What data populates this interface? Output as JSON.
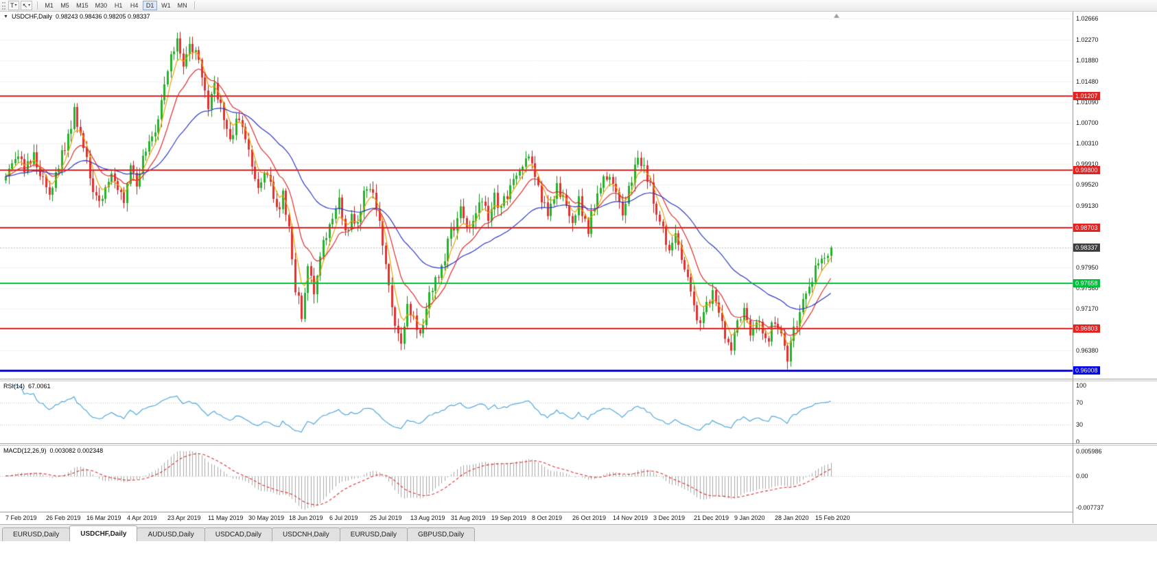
{
  "icons": {
    "caret": "▾",
    "collapse": "▼",
    "arrows_tool": "↖"
  },
  "toolbar": {
    "text_tool_label": "T",
    "timeframes": [
      "M1",
      "M5",
      "M15",
      "M30",
      "H1",
      "H4",
      "D1",
      "W1",
      "MN"
    ],
    "active_timeframe": "D1"
  },
  "chart": {
    "symbol_title": "USDCHF,Daily",
    "ohlc_text": "0.98243 0.98436 0.98205 0.98337"
  },
  "rsi": {
    "label": "RSI(14)",
    "value": "67.0061"
  },
  "macd": {
    "label": "MACD(12,26,9)",
    "value": "0.003082 0.002348"
  },
  "tabs": {
    "items": [
      "EURUSD,Daily",
      "USDCHF,Daily",
      "AUDUSD,Daily",
      "USDCAD,Daily",
      "USDCNH,Daily",
      "EURUSD,Daily",
      "GBPUSD,Daily"
    ],
    "active_index": 1
  },
  "chart_data": {
    "type": "candlestick",
    "symbol": "USDCHF",
    "timeframe": "Daily",
    "ohlc_display": {
      "open": 0.98243,
      "high": 0.98436,
      "low": 0.98205,
      "close": 0.98337
    },
    "current_price": 0.98337,
    "current_price_label": "0.98337",
    "current_price_tag_color": "#3f3f3f",
    "price_axis": {
      "min": 0.9585,
      "max": 1.028,
      "tick_labels": [
        1.02666,
        1.0227,
        1.0188,
        1.0148,
        1.0109,
        1.007,
        1.0031,
        0.9991,
        0.9952,
        0.9913,
        0.9873,
        0.9795,
        0.9756,
        0.9717,
        0.9678,
        0.9638
      ]
    },
    "hlines": [
      {
        "label": "1.01207",
        "price": 1.01207,
        "color": "#e42222",
        "width": 2
      },
      {
        "label": "0.99800",
        "price": 0.998,
        "color": "#e42222",
        "width": 2
      },
      {
        "label": "0.98703",
        "price": 0.98703,
        "color": "#e42222",
        "width": 2
      },
      {
        "label": "0.97658",
        "price": 0.97658,
        "color": "#00bd39",
        "width": 2
      },
      {
        "label": "0.96803",
        "price": 0.96803,
        "color": "#e42222",
        "width": 2
      },
      {
        "label": "0.96008",
        "price": 0.96008,
        "color": "#0000f0",
        "width": 3
      }
    ],
    "x_labels": [
      "7 Feb 2019",
      "26 Feb 2019",
      "16 Mar 2019",
      "4 Apr 2019",
      "23 Apr 2019",
      "11 May 2019",
      "30 May 2019",
      "18 Jun 2019",
      "6 Jul 2019",
      "25 Jul 2019",
      "13 Aug 2019",
      "31 Aug 2019",
      "19 Sep 2019",
      "8 Oct 2019",
      "26 Oct 2019",
      "14 Nov 2019",
      "3 Dec 2019",
      "21 Dec 2019",
      "9 Jan 2020",
      "28 Jan 2020",
      "15 Feb 2020"
    ],
    "bars": 266,
    "bars_per_label": 13,
    "candle_colors": {
      "up": "#23b22a",
      "up_border": "#128a19",
      "down": "#e03030",
      "down_border": "#b21e1e"
    },
    "price_path_anchors": [
      [
        0,
        0.996
      ],
      [
        3,
        1.0005
      ],
      [
        6,
        0.9985
      ],
      [
        9,
        1.001
      ],
      [
        12,
        0.9965
      ],
      [
        14,
        0.9935
      ],
      [
        17,
        0.999
      ],
      [
        20,
        1.004
      ],
      [
        22,
        1.009
      ],
      [
        24,
        1.005
      ],
      [
        26,
        0.9995
      ],
      [
        28,
        0.994
      ],
      [
        31,
        0.9915
      ],
      [
        34,
        0.9985
      ],
      [
        36,
        0.995
      ],
      [
        38,
        0.993
      ],
      [
        40,
        0.999
      ],
      [
        42,
        0.996
      ],
      [
        44,
        1.0
      ],
      [
        47,
        1.0035
      ],
      [
        49,
        1.008
      ],
      [
        51,
        1.014
      ],
      [
        53,
        1.02
      ],
      [
        55,
        1.022
      ],
      [
        57,
        1.0185
      ],
      [
        59,
        1.0215
      ],
      [
        61,
        1.0205
      ],
      [
        63,
        1.016
      ],
      [
        65,
        1.0105
      ],
      [
        67,
        1.0135
      ],
      [
        69,
        1.01
      ],
      [
        71,
        1.0055
      ],
      [
        73,
        1.0045
      ],
      [
        75,
        1.0085
      ],
      [
        77,
        1.003
      ],
      [
        79,
        0.9995
      ],
      [
        81,
        0.995
      ],
      [
        83,
        0.9985
      ],
      [
        85,
        0.9955
      ],
      [
        87,
        0.9905
      ],
      [
        89,
        0.993
      ],
      [
        91,
        0.988
      ],
      [
        93,
        0.976
      ],
      [
        95,
        0.9705
      ],
      [
        97,
        0.979
      ],
      [
        99,
        0.9755
      ],
      [
        101,
        0.9825
      ],
      [
        103,
        0.986
      ],
      [
        105,
        0.9885
      ],
      [
        107,
        0.992
      ],
      [
        109,
        0.986
      ],
      [
        111,
        0.989
      ],
      [
        113,
        0.9875
      ],
      [
        115,
        0.993
      ],
      [
        117,
        0.9945
      ],
      [
        119,
        0.9905
      ],
      [
        121,
        0.9845
      ],
      [
        123,
        0.9755
      ],
      [
        125,
        0.9695
      ],
      [
        127,
        0.966
      ],
      [
        129,
        0.9725
      ],
      [
        131,
        0.9695
      ],
      [
        133,
        0.966
      ],
      [
        135,
        0.9725
      ],
      [
        137,
        0.976
      ],
      [
        140,
        0.9795
      ],
      [
        143,
        0.986
      ],
      [
        146,
        0.99
      ],
      [
        149,
        0.987
      ],
      [
        152,
        0.9915
      ],
      [
        155,
        0.9895
      ],
      [
        157,
        0.993
      ],
      [
        159,
        0.9905
      ],
      [
        162,
        0.995
      ],
      [
        165,
        0.9985
      ],
      [
        168,
        1.0
      ],
      [
        170,
        0.997
      ],
      [
        172,
        0.993
      ],
      [
        174,
        0.989
      ],
      [
        177,
        0.9945
      ],
      [
        180,
        0.9915
      ],
      [
        182,
        0.989
      ],
      [
        184,
        0.992
      ],
      [
        187,
        0.987
      ],
      [
        190,
        0.993
      ],
      [
        193,
        0.997
      ],
      [
        195,
        0.9945
      ],
      [
        198,
        0.99
      ],
      [
        200,
        0.994
      ],
      [
        203,
        1.0
      ],
      [
        205,
        0.9985
      ],
      [
        207,
        0.9945
      ],
      [
        209,
        0.9895
      ],
      [
        211,
        0.9865
      ],
      [
        213,
        0.983
      ],
      [
        215,
        0.985
      ],
      [
        217,
        0.9805
      ],
      [
        219,
        0.9775
      ],
      [
        221,
        0.973
      ],
      [
        223,
        0.9685
      ],
      [
        225,
        0.972
      ],
      [
        227,
        0.975
      ],
      [
        229,
        0.9705
      ],
      [
        231,
        0.967
      ],
      [
        233,
        0.964
      ],
      [
        235,
        0.9685
      ],
      [
        237,
        0.971
      ],
      [
        239,
        0.9675
      ],
      [
        241,
        0.97
      ],
      [
        243,
        0.968
      ],
      [
        245,
        0.966
      ],
      [
        247,
        0.97
      ],
      [
        249,
        0.9665
      ],
      [
        251,
        0.963
      ],
      [
        253,
        0.9675
      ],
      [
        255,
        0.9715
      ],
      [
        257,
        0.9755
      ],
      [
        259,
        0.978
      ],
      [
        261,
        0.9805
      ],
      [
        263,
        0.9825
      ],
      [
        265,
        0.98337
      ]
    ],
    "moving_averages": [
      {
        "period": 5,
        "color": "#e8a200"
      },
      {
        "period": 13,
        "color": "#e02828"
      },
      {
        "period": 40,
        "color": "#2a35c8"
      }
    ],
    "rsi_indicator": {
      "period": 14,
      "value": 67.0061,
      "levels": [
        {
          "label": "100",
          "value": 100
        },
        {
          "label": "70",
          "value": 70
        },
        {
          "label": "30",
          "value": 30
        },
        {
          "label": "0",
          "value": 0
        }
      ],
      "color": "#4fa8dc"
    },
    "macd_indicator": {
      "fast": 12,
      "slow": 26,
      "signal": 9,
      "macd_value": 0.003082,
      "signal_value": 0.002348,
      "axis_labels": [
        {
          "label": "0.005986",
          "value": 0.005986
        },
        {
          "label": "0.00",
          "value": 0
        },
        {
          "label": "-0.007737",
          "value": -0.007737
        }
      ],
      "histogram_color": "#a6a6a6",
      "signal_color": "#e02828"
    }
  }
}
